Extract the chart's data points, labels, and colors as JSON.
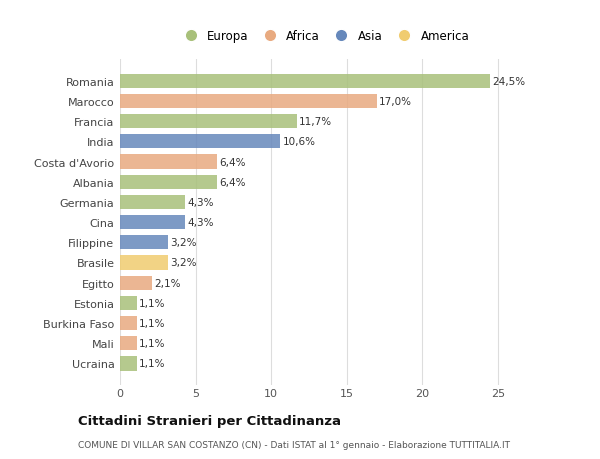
{
  "countries": [
    "Romania",
    "Marocco",
    "Francia",
    "India",
    "Costa d'Avorio",
    "Albania",
    "Germania",
    "Cina",
    "Filippine",
    "Brasile",
    "Egitto",
    "Estonia",
    "Burkina Faso",
    "Mali",
    "Ucraina"
  ],
  "values": [
    24.5,
    17.0,
    11.7,
    10.6,
    6.4,
    6.4,
    4.3,
    4.3,
    3.2,
    3.2,
    2.1,
    1.1,
    1.1,
    1.1,
    1.1
  ],
  "labels": [
    "24,5%",
    "17,0%",
    "11,7%",
    "10,6%",
    "6,4%",
    "6,4%",
    "4,3%",
    "4,3%",
    "3,2%",
    "3,2%",
    "2,1%",
    "1,1%",
    "1,1%",
    "1,1%",
    "1,1%"
  ],
  "continents": [
    "Europa",
    "Africa",
    "Europa",
    "Asia",
    "Africa",
    "Europa",
    "Europa",
    "Asia",
    "Asia",
    "America",
    "Africa",
    "Europa",
    "Africa",
    "Africa",
    "Europa"
  ],
  "colors": {
    "Europa": "#a8c07a",
    "Africa": "#e8aa80",
    "Asia": "#6688bb",
    "America": "#f0cc70"
  },
  "legend_order": [
    "Europa",
    "Africa",
    "Asia",
    "America"
  ],
  "title": "Cittadini Stranieri per Cittadinanza",
  "subtitle": "COMUNE DI VILLAR SAN COSTANZO (CN) - Dati ISTAT al 1° gennaio - Elaborazione TUTTITALIA.IT",
  "xlim": [
    0,
    27
  ],
  "xticks": [
    0,
    5,
    10,
    15,
    20,
    25
  ],
  "background_color": "#ffffff",
  "grid_color": "#dddddd",
  "bar_height": 0.7
}
